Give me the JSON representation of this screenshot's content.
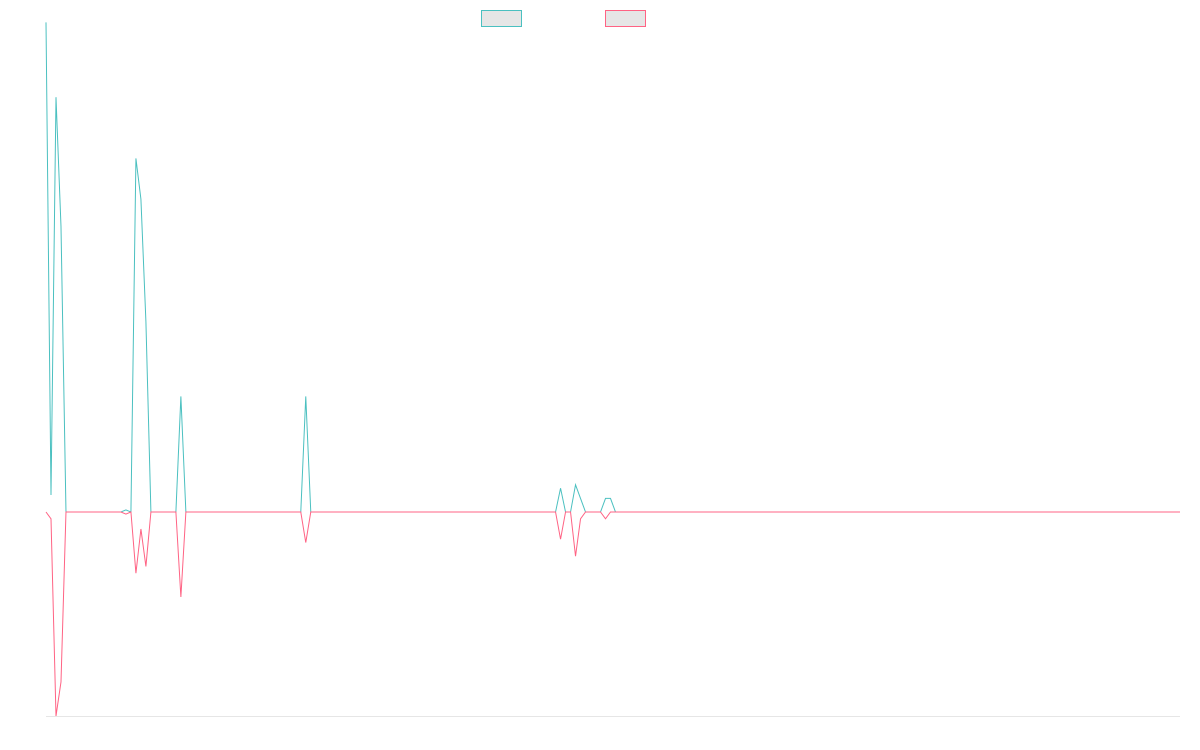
{
  "chart_data": {
    "type": "line",
    "title": "",
    "xlabel": "",
    "ylabel": "",
    "grid": false,
    "legend_position": "top-center",
    "x_range": [
      0,
      227
    ],
    "ylim": [
      -3,
      7
    ],
    "colors": {
      "series_1": "#4bc0c0",
      "series_2": "#ff6384",
      "legend_fill": "#e6e6e6",
      "axis": "#e6e6e6"
    },
    "series": [
      {
        "legend_color": "#4bc0c0",
        "points": [
          [
            0,
            7.2
          ],
          [
            1,
            0.25
          ],
          [
            2,
            6.1
          ],
          [
            3,
            4.2
          ],
          [
            4,
            0
          ],
          [
            5,
            0
          ],
          [
            15,
            0
          ],
          [
            16,
            0.03
          ],
          [
            17,
            0
          ],
          [
            18,
            5.2
          ],
          [
            19,
            4.6
          ],
          [
            20,
            2.8
          ],
          [
            21,
            0
          ],
          [
            26,
            0
          ],
          [
            27,
            1.7
          ],
          [
            28,
            0
          ],
          [
            51,
            0
          ],
          [
            52,
            1.7
          ],
          [
            53,
            0
          ],
          [
            102,
            0
          ],
          [
            103,
            0.35
          ],
          [
            104,
            0
          ],
          [
            105,
            0
          ],
          [
            106,
            0.4
          ],
          [
            107,
            0.2
          ],
          [
            108,
            0
          ],
          [
            111,
            0
          ],
          [
            112,
            0.2
          ],
          [
            113,
            0.2
          ],
          [
            114,
            0
          ],
          [
            227,
            0
          ]
        ]
      },
      {
        "legend_color": "#ff6384",
        "points": [
          [
            0,
            0
          ],
          [
            1,
            -0.1
          ],
          [
            2,
            -3.0
          ],
          [
            3,
            -2.5
          ],
          [
            4,
            0
          ],
          [
            5,
            0
          ],
          [
            15,
            0
          ],
          [
            16,
            -0.03
          ],
          [
            17,
            0
          ],
          [
            18,
            -0.9
          ],
          [
            19,
            -0.25
          ],
          [
            20,
            -0.8
          ],
          [
            21,
            0
          ],
          [
            26,
            0
          ],
          [
            27,
            -1.25
          ],
          [
            28,
            0
          ],
          [
            51,
            0
          ],
          [
            52,
            -0.45
          ],
          [
            53,
            0
          ],
          [
            102,
            0
          ],
          [
            103,
            -0.4
          ],
          [
            104,
            0
          ],
          [
            105,
            0
          ],
          [
            106,
            -0.65
          ],
          [
            107,
            -0.1
          ],
          [
            108,
            0
          ],
          [
            111,
            0
          ],
          [
            112,
            -0.1
          ],
          [
            113,
            0
          ],
          [
            227,
            0
          ]
        ]
      }
    ]
  }
}
